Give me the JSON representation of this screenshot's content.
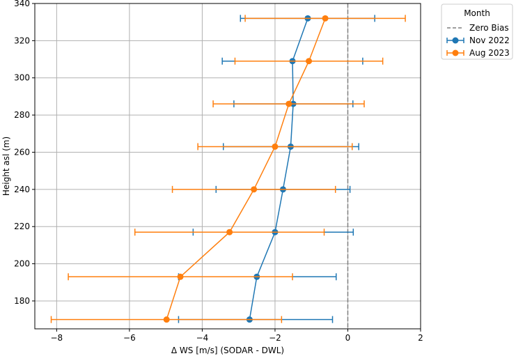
{
  "chart_data": {
    "type": "line",
    "title": "",
    "xlabel": "Δ WS [m/s] (SODAR - DWL)",
    "ylabel": "Height asl (m)",
    "xlim": [
      -8.6,
      2.0
    ],
    "ylim": [
      165,
      340
    ],
    "xticks": [
      -8,
      -6,
      -4,
      -2,
      0,
      2
    ],
    "yticks": [
      180,
      200,
      220,
      240,
      260,
      280,
      300,
      320,
      340
    ],
    "grid": true,
    "orientation": "horizontal-error-bars",
    "reference_line": {
      "x": 0,
      "label": "Zero Bias",
      "color": "#7f7f7f",
      "style": "dashed"
    },
    "legend": {
      "title": "Month",
      "placement": "outside-top-right",
      "entries": [
        "Zero Bias",
        "Nov 2022",
        "Aug 2023"
      ]
    },
    "series": [
      {
        "name": "Nov 2022",
        "color": "#1f77b4",
        "points": [
          {
            "y": 170,
            "x": -2.7,
            "xerr_low": -4.65,
            "xerr_high": -0.42
          },
          {
            "y": 193,
            "x": -2.5,
            "xerr_low": -4.65,
            "xerr_high": -0.32
          },
          {
            "y": 217,
            "x": -2.0,
            "xerr_low": -4.25,
            "xerr_high": 0.15
          },
          {
            "y": 240,
            "x": -1.78,
            "xerr_low": -3.62,
            "xerr_high": 0.06
          },
          {
            "y": 263,
            "x": -1.57,
            "xerr_low": -3.42,
            "xerr_high": 0.3
          },
          {
            "y": 286,
            "x": -1.5,
            "xerr_low": -3.13,
            "xerr_high": 0.14
          },
          {
            "y": 309,
            "x": -1.52,
            "xerr_low": -3.45,
            "xerr_high": 0.41
          },
          {
            "y": 332,
            "x": -1.1,
            "xerr_low": -2.95,
            "xerr_high": 0.74
          }
        ]
      },
      {
        "name": "Aug 2023",
        "color": "#ff7f0e",
        "points": [
          {
            "y": 170,
            "x": -4.98,
            "xerr_low": -8.15,
            "xerr_high": -1.82
          },
          {
            "y": 193,
            "x": -4.6,
            "xerr_low": -7.68,
            "xerr_high": -1.52
          },
          {
            "y": 217,
            "x": -3.25,
            "xerr_low": -5.85,
            "xerr_high": -0.65
          },
          {
            "y": 240,
            "x": -2.58,
            "xerr_low": -4.82,
            "xerr_high": -0.34
          },
          {
            "y": 263,
            "x": -2.0,
            "xerr_low": -4.12,
            "xerr_high": 0.12
          },
          {
            "y": 286,
            "x": -1.62,
            "xerr_low": -3.7,
            "xerr_high": 0.45
          },
          {
            "y": 309,
            "x": -1.07,
            "xerr_low": -3.1,
            "xerr_high": 0.96
          },
          {
            "y": 332,
            "x": -0.62,
            "xerr_low": -2.82,
            "xerr_high": 1.58
          }
        ]
      }
    ]
  }
}
